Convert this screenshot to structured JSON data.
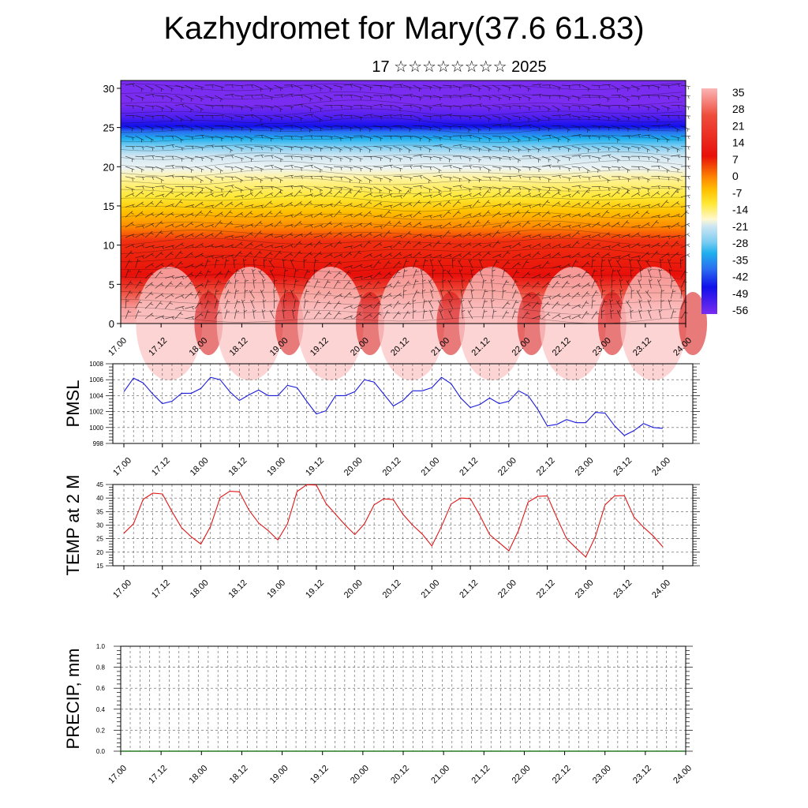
{
  "title": "Kazhydromet for Mary(37.6 61.83)",
  "subtitle": "17 ☆☆☆☆☆☆☆☆ 2025",
  "time_ticks": [
    "17.00",
    "17.12",
    "18.00",
    "18.12",
    "19.00",
    "19.12",
    "20.00",
    "20.12",
    "21.00",
    "21.12",
    "22.00",
    "22.12",
    "23.00",
    "23.12",
    "24.00"
  ],
  "chart_data": [
    {
      "type": "heatmap",
      "name": "vertical cross-section",
      "xlabel": "",
      "ylabel": "",
      "y_ticks": [
        0,
        5,
        10,
        15,
        20,
        25,
        30
      ],
      "ylim": [
        0,
        31
      ],
      "colorbar_labels": [
        "35",
        "28",
        "21",
        "14",
        "7",
        "0",
        "-7",
        "-14",
        "-21",
        "-28",
        "-35",
        "-42",
        "-49",
        "-56"
      ],
      "colorbar_range": [
        -60,
        38
      ],
      "colors": {
        "hot": "#fbb5b5",
        "red": "#e8100a",
        "orange": "#ff8c00",
        "yellow": "#ffe833",
        "lightblue": "#cfe6f2",
        "cyan": "#1fb0ee",
        "blue": "#1010ea",
        "purple": "#7a2cf0"
      },
      "wind_barbs": true
    },
    {
      "type": "line",
      "ylabel": "PMSL",
      "ylim": [
        998,
        1008
      ],
      "y_ticks": [
        "998",
        "1000",
        "1002",
        "1004",
        "1006",
        "1008"
      ],
      "series_color": "#1a1adb",
      "values": [
        1004.5,
        1006.2,
        1005.6,
        1004.2,
        1003.0,
        1003.3,
        1004.3,
        1004.3,
        1004.9,
        1006.3,
        1006.0,
        1004.5,
        1003.4,
        1004.1,
        1004.7,
        1004.0,
        1004.0,
        1005.3,
        1005.0,
        1003.3,
        1001.7,
        1002.1,
        1004.0,
        1004.0,
        1004.5,
        1006.0,
        1005.7,
        1004.2,
        1002.7,
        1003.4,
        1004.6,
        1004.6,
        1005.0,
        1006.3,
        1005.5,
        1003.7,
        1002.5,
        1002.9,
        1003.7,
        1003.0,
        1003.3,
        1004.6,
        1004.0,
        1002.3,
        1000.2,
        1000.4,
        1001.0,
        1000.6,
        1000.6,
        1001.9,
        1001.8,
        1000.2,
        999.0,
        999.6,
        1000.5,
        1000.0,
        999.9
      ]
    },
    {
      "type": "line",
      "ylabel": "TEMP at 2 M",
      "ylim": [
        15,
        45
      ],
      "y_ticks": [
        "15",
        "20",
        "25",
        "30",
        "35",
        "40",
        "45"
      ],
      "series_color": "#e01818",
      "values": [
        27,
        30.5,
        39.5,
        41.8,
        41.5,
        35,
        29,
        25.7,
        23,
        29.5,
        40.2,
        42.5,
        42.3,
        35.5,
        30.8,
        28,
        24.5,
        30.5,
        42.4,
        44.9,
        44.8,
        38,
        34,
        30,
        26.5,
        30.5,
        37.5,
        39.7,
        39.4,
        34,
        30,
        26.7,
        22.3,
        29.5,
        37.8,
        40,
        39.8,
        33.5,
        26.5,
        23.5,
        20.5,
        28,
        38.5,
        40.6,
        40.8,
        32.7,
        25,
        21.5,
        18.2,
        25.8,
        37.5,
        40.8,
        40.9,
        33,
        29.2,
        26,
        22
      ]
    },
    {
      "type": "line",
      "ylabel": "PRECIP, mm",
      "ylim": [
        0,
        1
      ],
      "y_ticks": [
        "0.0",
        "0.2",
        "0.4",
        "0.6",
        "0.8",
        "1.0"
      ],
      "series_color": "#2a7a2a",
      "values": [
        0,
        0,
        0,
        0,
        0,
        0,
        0,
        0,
        0,
        0,
        0,
        0,
        0,
        0,
        0,
        0,
        0,
        0,
        0,
        0,
        0,
        0,
        0,
        0,
        0,
        0,
        0,
        0,
        0,
        0,
        0,
        0,
        0,
        0,
        0,
        0,
        0,
        0,
        0,
        0,
        0,
        0,
        0,
        0,
        0,
        0,
        0,
        0,
        0,
        0,
        0,
        0,
        0,
        0,
        0,
        0,
        0
      ]
    }
  ]
}
